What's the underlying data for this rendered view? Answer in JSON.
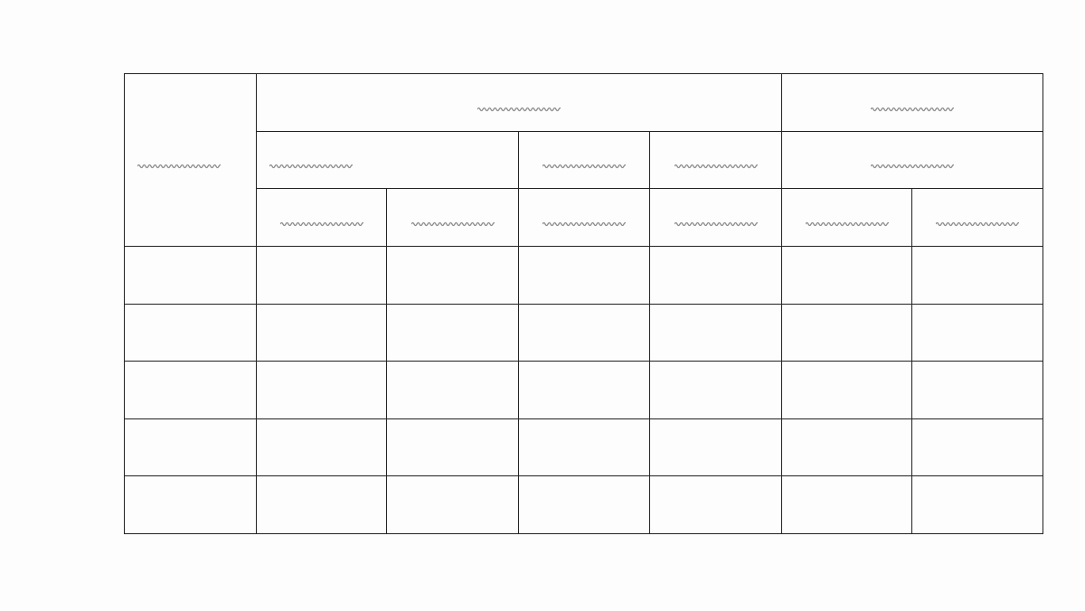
{
  "colors": {
    "border": "#222222",
    "placeholder": "#8a8a8a",
    "background": "#fdfdfd"
  },
  "header": {
    "row_header": {
      "placeholder": "squiggle"
    },
    "group_a": {
      "placeholder": "squiggle",
      "subgroups": [
        {
          "placeholder": "squiggle",
          "columns": [
            "squiggle",
            "squiggle"
          ]
        },
        {
          "placeholder": "squiggle",
          "columns": [
            "squiggle"
          ]
        },
        {
          "placeholder": "squiggle",
          "columns": [
            "squiggle"
          ]
        }
      ]
    },
    "group_b": {
      "placeholder": "squiggle",
      "subgroups": [
        {
          "placeholder": "squiggle",
          "columns": [
            "squiggle",
            "squiggle"
          ]
        }
      ]
    }
  },
  "body": {
    "rows": 5,
    "columns": 7,
    "cells": "empty"
  }
}
